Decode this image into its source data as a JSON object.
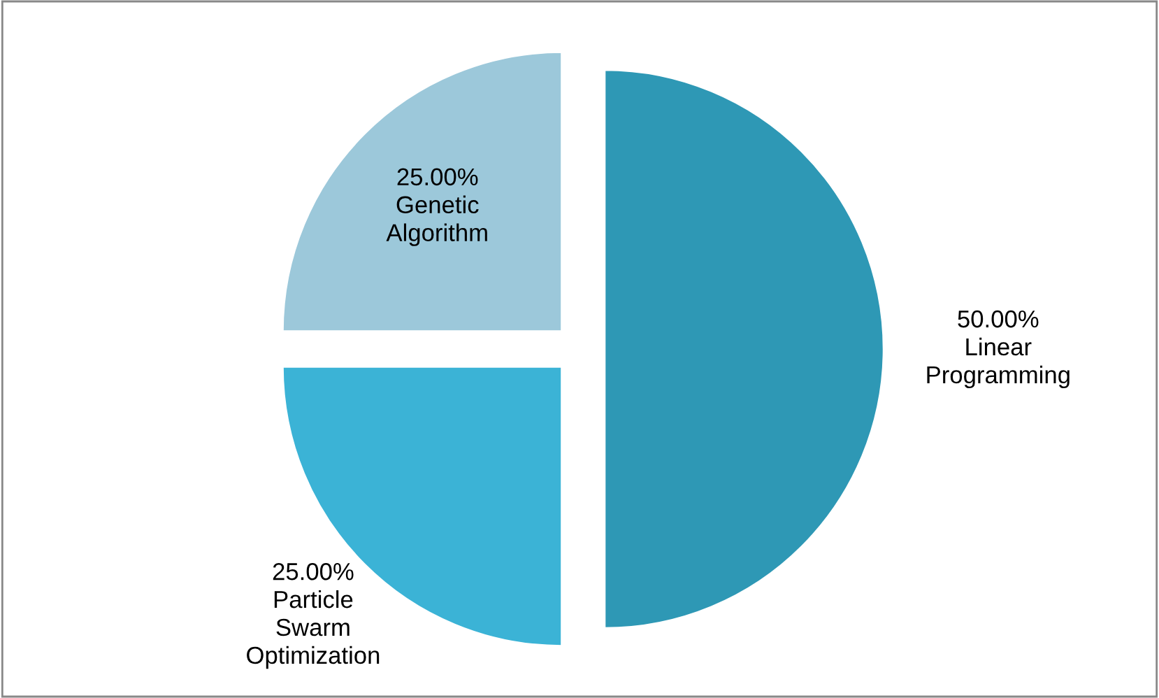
{
  "chart_data": {
    "type": "pie",
    "categories": [
      "Linear Programming",
      "Particle Swarm Optimization",
      "Genetic Algorithm"
    ],
    "values": [
      50,
      25,
      25
    ],
    "value_labels": [
      "50.00%",
      "25.00%",
      "25.00%"
    ],
    "colors": [
      "#2e98b5",
      "#3bb3d6",
      "#9cc8da"
    ],
    "legend": false
  }
}
